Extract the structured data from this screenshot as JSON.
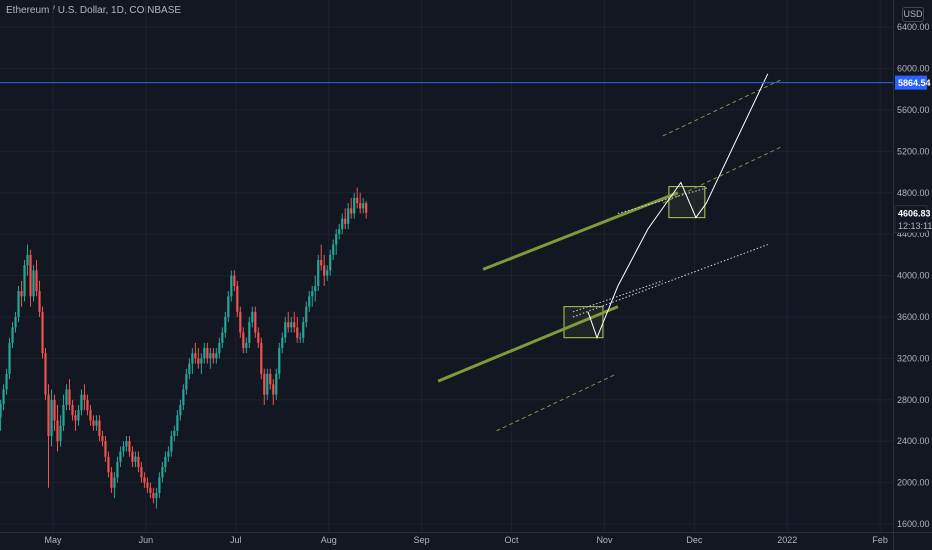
{
  "header": {
    "title": "Ethereum / U.S. Dollar, 1D, COINBASE",
    "currency": "USD"
  },
  "colors": {
    "background": "#131722",
    "up": "#26a69a",
    "down": "#ef5350",
    "grid": "#1e222d",
    "axis_text": "#b2b5be",
    "price_line": "#2962ff",
    "trend": "#7e9a3b",
    "zone": "#b5cc56",
    "projection": "#ffffff"
  },
  "chart_data": {
    "type": "candlestick",
    "symbol": "Ethereum / U.S. Dollar",
    "interval": "1D",
    "exchange": "COINBASE",
    "currency": "USD",
    "y_ticks": [
      1600,
      2000,
      2400,
      2800,
      3200,
      3600,
      4000,
      4400,
      4800,
      5200,
      5600,
      6000,
      6400
    ],
    "y_tick_labels": [
      "1600.00",
      "2000.00",
      "2400.00",
      "2800.00",
      "3200.00",
      "3600.00",
      "4000.00",
      "4400.00",
      "4800.00",
      "5200.00",
      "5600.00",
      "6000.00",
      "6400.00"
    ],
    "x_ticks": [
      {
        "label": "May",
        "day": 0
      },
      {
        "label": "Jun",
        "day": 31
      },
      {
        "label": "Jul",
        "day": 61
      },
      {
        "label": "Aug",
        "day": 92
      },
      {
        "label": "Sep",
        "day": 123
      },
      {
        "label": "Oct",
        "day": 153
      },
      {
        "label": "Nov",
        "day": 184
      },
      {
        "label": "Dec",
        "day": 214
      },
      {
        "label": "2022",
        "day": 245
      },
      {
        "label": "Feb",
        "day": 276
      }
    ],
    "horizontal_line": {
      "price": 5864.54,
      "label": "5864.54"
    },
    "last_price": {
      "price": 4606.83,
      "label": "4606.83",
      "countdown": "12:13:11"
    },
    "candles": [
      [
        2630,
        2800,
        2500,
        2760
      ],
      [
        2760,
        2950,
        2700,
        2900
      ],
      [
        2900,
        3100,
        2850,
        3050
      ],
      [
        3050,
        3400,
        3000,
        3350
      ],
      [
        3350,
        3550,
        3300,
        3500
      ],
      [
        3500,
        3650,
        3450,
        3600
      ],
      [
        3600,
        3900,
        3550,
        3850
      ],
      [
        3850,
        3950,
        3700,
        3800
      ],
      [
        3800,
        4150,
        3750,
        4100
      ],
      [
        4100,
        4300,
        4000,
        4200
      ],
      [
        4200,
        4250,
        3700,
        3800
      ],
      [
        3800,
        4100,
        3750,
        4050
      ],
      [
        4050,
        4150,
        3800,
        3850
      ],
      [
        3850,
        3950,
        3600,
        3650
      ],
      [
        3650,
        3700,
        3200,
        3250
      ],
      [
        3250,
        3300,
        2800,
        2850
      ],
      [
        2850,
        2950,
        1950,
        2450
      ],
      [
        2450,
        2900,
        2350,
        2800
      ],
      [
        2800,
        2850,
        2500,
        2600
      ],
      [
        2600,
        2750,
        2300,
        2400
      ],
      [
        2400,
        2650,
        2350,
        2550
      ],
      [
        2550,
        2850,
        2500,
        2750
      ],
      [
        2750,
        2950,
        2700,
        2900
      ],
      [
        2900,
        3000,
        2700,
        2750
      ],
      [
        2750,
        2800,
        2600,
        2650
      ],
      [
        2650,
        2700,
        2500,
        2600
      ],
      [
        2600,
        2750,
        2550,
        2700
      ],
      [
        2700,
        2900,
        2650,
        2850
      ],
      [
        2850,
        2950,
        2700,
        2800
      ],
      [
        2800,
        2850,
        2650,
        2700
      ],
      [
        2700,
        2750,
        2550,
        2600
      ],
      [
        2600,
        2650,
        2500,
        2550
      ],
      [
        2550,
        2650,
        2500,
        2600
      ],
      [
        2600,
        2650,
        2400,
        2450
      ],
      [
        2450,
        2500,
        2350,
        2400
      ],
      [
        2400,
        2450,
        2200,
        2250
      ],
      [
        2250,
        2300,
        2050,
        2100
      ],
      [
        2100,
        2150,
        1900,
        1950
      ],
      [
        1950,
        2100,
        1850,
        2050
      ],
      [
        2050,
        2250,
        2000,
        2200
      ],
      [
        2200,
        2350,
        2150,
        2300
      ],
      [
        2300,
        2400,
        2250,
        2350
      ],
      [
        2350,
        2450,
        2300,
        2400
      ],
      [
        2400,
        2450,
        2250,
        2300
      ],
      [
        2300,
        2350,
        2150,
        2200
      ],
      [
        2200,
        2300,
        2150,
        2250
      ],
      [
        2250,
        2300,
        2100,
        2150
      ],
      [
        2150,
        2200,
        2000,
        2050
      ],
      [
        2050,
        2100,
        1950,
        2000
      ],
      [
        2000,
        2050,
        1900,
        1950
      ],
      [
        1950,
        2000,
        1850,
        1900
      ],
      [
        1900,
        1950,
        1800,
        1850
      ],
      [
        1850,
        1950,
        1750,
        1900
      ],
      [
        1900,
        2100,
        1850,
        2050
      ],
      [
        2050,
        2200,
        2000,
        2150
      ],
      [
        2150,
        2300,
        2100,
        2250
      ],
      [
        2250,
        2350,
        2200,
        2300
      ],
      [
        2300,
        2500,
        2250,
        2450
      ],
      [
        2450,
        2550,
        2400,
        2500
      ],
      [
        2500,
        2700,
        2450,
        2650
      ],
      [
        2650,
        2800,
        2600,
        2750
      ],
      [
        2750,
        2950,
        2700,
        2900
      ],
      [
        2900,
        3100,
        2850,
        3050
      ],
      [
        3050,
        3200,
        3000,
        3150
      ],
      [
        3150,
        3300,
        3050,
        3250
      ],
      [
        3250,
        3350,
        3150,
        3200
      ],
      [
        3200,
        3300,
        3100,
        3150
      ],
      [
        3150,
        3250,
        3050,
        3200
      ],
      [
        3200,
        3350,
        3150,
        3300
      ],
      [
        3300,
        3350,
        3150,
        3200
      ],
      [
        3200,
        3300,
        3100,
        3250
      ],
      [
        3250,
        3300,
        3150,
        3200
      ],
      [
        3200,
        3300,
        3150,
        3250
      ],
      [
        3250,
        3400,
        3200,
        3350
      ],
      [
        3350,
        3500,
        3300,
        3450
      ],
      [
        3450,
        3650,
        3400,
        3600
      ],
      [
        3600,
        3850,
        3550,
        3800
      ],
      [
        3800,
        4050,
        3750,
        4000
      ],
      [
        4000,
        4050,
        3850,
        3900
      ],
      [
        3900,
        3950,
        3600,
        3650
      ],
      [
        3650,
        3700,
        3400,
        3450
      ],
      [
        3450,
        3500,
        3250,
        3300
      ],
      [
        3300,
        3400,
        3250,
        3350
      ],
      [
        3350,
        3600,
        3300,
        3550
      ],
      [
        3550,
        3700,
        3500,
        3650
      ],
      [
        3650,
        3700,
        3400,
        3450
      ],
      [
        3450,
        3500,
        3300,
        3350
      ],
      [
        3350,
        3400,
        3000,
        3050
      ],
      [
        3050,
        3100,
        2750,
        2850
      ],
      [
        2850,
        3100,
        2800,
        3050
      ],
      [
        3050,
        3100,
        2900,
        2950
      ],
      [
        2950,
        3000,
        2750,
        2850
      ],
      [
        2850,
        3100,
        2800,
        3050
      ],
      [
        3050,
        3350,
        3000,
        3300
      ],
      [
        3300,
        3450,
        3250,
        3400
      ],
      [
        3400,
        3600,
        3350,
        3550
      ],
      [
        3550,
        3650,
        3450,
        3500
      ],
      [
        3500,
        3600,
        3450,
        3550
      ],
      [
        3550,
        3650,
        3450,
        3500
      ],
      [
        3500,
        3600,
        3350,
        3400
      ],
      [
        3400,
        3450,
        3350,
        3400
      ],
      [
        3400,
        3600,
        3350,
        3550
      ],
      [
        3550,
        3750,
        3500,
        3700
      ],
      [
        3700,
        3850,
        3650,
        3800
      ],
      [
        3800,
        3900,
        3700,
        3850
      ],
      [
        3850,
        4000,
        3750,
        3900
      ],
      [
        3900,
        4200,
        3850,
        4150
      ],
      [
        4150,
        4300,
        4050,
        4100
      ],
      [
        4100,
        4200,
        3900,
        4000
      ],
      [
        4000,
        4100,
        3950,
        4050
      ],
      [
        4050,
        4250,
        4000,
        4200
      ],
      [
        4200,
        4350,
        4150,
        4300
      ],
      [
        4300,
        4450,
        4200,
        4400
      ],
      [
        4400,
        4500,
        4350,
        4450
      ],
      [
        4450,
        4600,
        4400,
        4550
      ],
      [
        4550,
        4650,
        4450,
        4500
      ],
      [
        4500,
        4700,
        4450,
        4650
      ],
      [
        4650,
        4750,
        4550,
        4600
      ],
      [
        4600,
        4800,
        4550,
        4750
      ],
      [
        4750,
        4850,
        4650,
        4700
      ],
      [
        4700,
        4800,
        4600,
        4650
      ],
      [
        4650,
        4750,
        4600,
        4700
      ],
      [
        4700,
        4720,
        4550,
        4606.83
      ]
    ],
    "trend_lines": [
      {
        "style": "thick",
        "points": [
          [
            143.5,
            4060
          ],
          [
            208.5,
            4800
          ]
        ]
      },
      {
        "style": "thick",
        "points": [
          [
            128.5,
            2980
          ],
          [
            188.5,
            3700
          ]
        ]
      },
      {
        "style": "dashed",
        "points": [
          [
            148,
            2500
          ],
          [
            188,
            3050
          ]
        ]
      },
      {
        "style": "dashed",
        "points": [
          [
            203.5,
            5350
          ],
          [
            243.5,
            5900
          ]
        ]
      },
      {
        "style": "dashed",
        "points": [
          [
            203.5,
            4700
          ],
          [
            243.5,
            5250
          ]
        ]
      },
      {
        "style": "dotted",
        "points": [
          [
            173.5,
            3600
          ],
          [
            238.5,
            4300
          ]
        ]
      },
      {
        "style": "dotted",
        "points": [
          [
            188.5,
            4600
          ],
          [
            218.5,
            4850
          ]
        ]
      },
      {
        "style": "dotted",
        "points": [
          [
            173.5,
            3650
          ],
          [
            203.5,
            3950
          ]
        ]
      }
    ],
    "zones": [
      {
        "x0": 170.5,
        "x1": 183.5,
        "p0": 3400,
        "p1": 3700
      },
      {
        "x0": 205.5,
        "x1": 217.5,
        "p0": 4560,
        "p1": 4860
      }
    ],
    "projections": [
      {
        "points": [
          [
            178.5,
            3650
          ],
          [
            181.5,
            3400
          ],
          [
            188.5,
            3900
          ],
          [
            198.5,
            4450
          ],
          [
            209.5,
            4900
          ],
          [
            214.5,
            4560
          ],
          [
            218,
            4700
          ],
          [
            238.5,
            5950
          ]
        ]
      }
    ]
  }
}
